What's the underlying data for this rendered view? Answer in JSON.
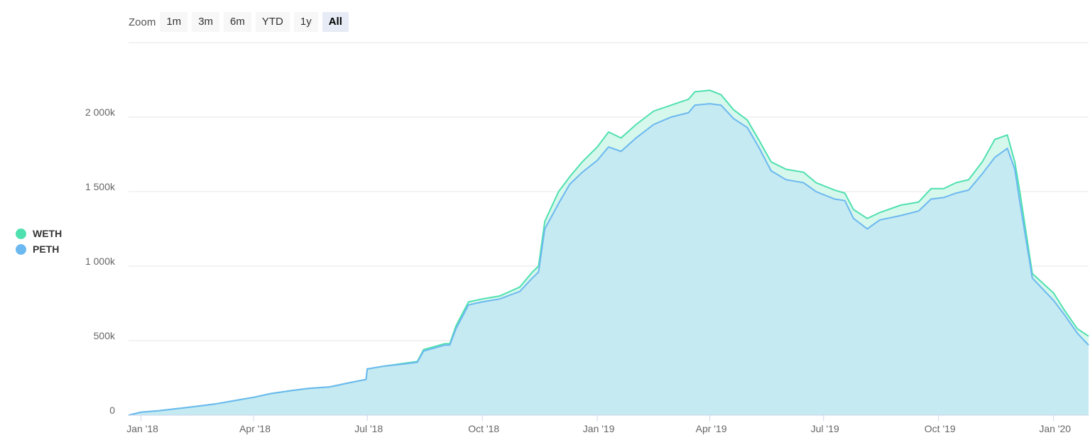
{
  "zoom": {
    "label": "Zoom",
    "buttons": [
      "1m",
      "3m",
      "6m",
      "YTD",
      "1y",
      "All"
    ],
    "active": "All"
  },
  "legend": [
    {
      "name": "WETH",
      "color": "#4fe0b0"
    },
    {
      "name": "PETH",
      "color": "#6cb8f0"
    }
  ],
  "colors": {
    "weth_line": "#4fe0b0",
    "weth_fill": "#d6f7ec",
    "peth_line": "#6cb8f0",
    "peth_fill": "#c5eaf2",
    "grid": "#e6e6e6"
  },
  "chart_data": {
    "type": "area",
    "title": "",
    "xlabel": "",
    "ylabel": "",
    "ylim": [
      0,
      2500000
    ],
    "xlim": [
      "2017-12-22",
      "2020-01-29"
    ],
    "y_ticks": [
      {
        "value": 0,
        "label": "0"
      },
      {
        "value": 500000,
        "label": "500k"
      },
      {
        "value": 1000000,
        "label": "1 000k"
      },
      {
        "value": 1500000,
        "label": "1 500k"
      },
      {
        "value": 2000000,
        "label": "2 000k"
      }
    ],
    "x_ticks": [
      {
        "date": "2018-01-01",
        "label": "Jan '18"
      },
      {
        "date": "2018-04-01",
        "label": "Apr '18"
      },
      {
        "date": "2018-07-01",
        "label": "Jul '18"
      },
      {
        "date": "2018-10-01",
        "label": "Oct '18"
      },
      {
        "date": "2019-01-01",
        "label": "Jan '19"
      },
      {
        "date": "2019-04-01",
        "label": "Apr '19"
      },
      {
        "date": "2019-07-01",
        "label": "Jul '19"
      },
      {
        "date": "2019-10-01",
        "label": "Oct '19"
      },
      {
        "date": "2020-01-01",
        "label": "Jan '20"
      }
    ],
    "grid": true,
    "legend_position": "left",
    "x": [
      "2017-12-22",
      "2018-01-01",
      "2018-01-15",
      "2018-01-31",
      "2018-02-15",
      "2018-03-01",
      "2018-03-15",
      "2018-04-01",
      "2018-04-15",
      "2018-05-01",
      "2018-05-15",
      "2018-06-01",
      "2018-06-15",
      "2018-06-30",
      "2018-07-01",
      "2018-07-15",
      "2018-08-01",
      "2018-08-10",
      "2018-08-15",
      "2018-09-01",
      "2018-09-05",
      "2018-09-10",
      "2018-09-20",
      "2018-10-01",
      "2018-10-15",
      "2018-10-31",
      "2018-11-10",
      "2018-11-15",
      "2018-11-20",
      "2018-12-01",
      "2018-12-10",
      "2018-12-20",
      "2019-01-01",
      "2019-01-10",
      "2019-01-20",
      "2019-02-01",
      "2019-02-15",
      "2019-03-01",
      "2019-03-15",
      "2019-03-20",
      "2019-04-01",
      "2019-04-10",
      "2019-04-20",
      "2019-05-01",
      "2019-05-10",
      "2019-05-20",
      "2019-06-01",
      "2019-06-15",
      "2019-06-25",
      "2019-07-10",
      "2019-07-18",
      "2019-07-25",
      "2019-08-05",
      "2019-08-15",
      "2019-09-01",
      "2019-09-15",
      "2019-09-25",
      "2019-10-05",
      "2019-10-15",
      "2019-10-25",
      "2019-11-05",
      "2019-11-15",
      "2019-11-25",
      "2019-12-01",
      "2019-12-05",
      "2019-12-15",
      "2020-01-01",
      "2020-01-10",
      "2020-01-20",
      "2020-01-29"
    ],
    "series": [
      {
        "name": "WETH",
        "color": "#4fe0b0",
        "values": [
          0,
          20000,
          30000,
          45000,
          60000,
          75000,
          95000,
          120000,
          145000,
          165000,
          180000,
          190000,
          215000,
          240000,
          310000,
          330000,
          350000,
          360000,
          440000,
          480000,
          480000,
          600000,
          760000,
          780000,
          800000,
          860000,
          960000,
          1000000,
          1300000,
          1500000,
          1600000,
          1700000,
          1800000,
          1900000,
          1860000,
          1950000,
          2040000,
          2080000,
          2120000,
          2170000,
          2180000,
          2150000,
          2050000,
          1980000,
          1850000,
          1700000,
          1650000,
          1630000,
          1560000,
          1510000,
          1490000,
          1380000,
          1320000,
          1360000,
          1410000,
          1430000,
          1520000,
          1520000,
          1560000,
          1580000,
          1700000,
          1850000,
          1880000,
          1700000,
          1500000,
          950000,
          820000,
          700000,
          580000,
          530000
        ]
      },
      {
        "name": "PETH",
        "color": "#6cb8f0",
        "values": [
          0,
          20000,
          30000,
          45000,
          60000,
          75000,
          95000,
          120000,
          145000,
          165000,
          180000,
          190000,
          215000,
          240000,
          310000,
          330000,
          345000,
          355000,
          430000,
          470000,
          470000,
          580000,
          740000,
          760000,
          780000,
          830000,
          920000,
          960000,
          1250000,
          1420000,
          1550000,
          1630000,
          1710000,
          1800000,
          1770000,
          1860000,
          1950000,
          2000000,
          2030000,
          2080000,
          2090000,
          2080000,
          1990000,
          1930000,
          1800000,
          1640000,
          1580000,
          1560000,
          1500000,
          1450000,
          1440000,
          1320000,
          1250000,
          1310000,
          1340000,
          1370000,
          1450000,
          1460000,
          1490000,
          1510000,
          1620000,
          1730000,
          1790000,
          1650000,
          1430000,
          920000,
          770000,
          670000,
          550000,
          470000
        ]
      }
    ]
  }
}
